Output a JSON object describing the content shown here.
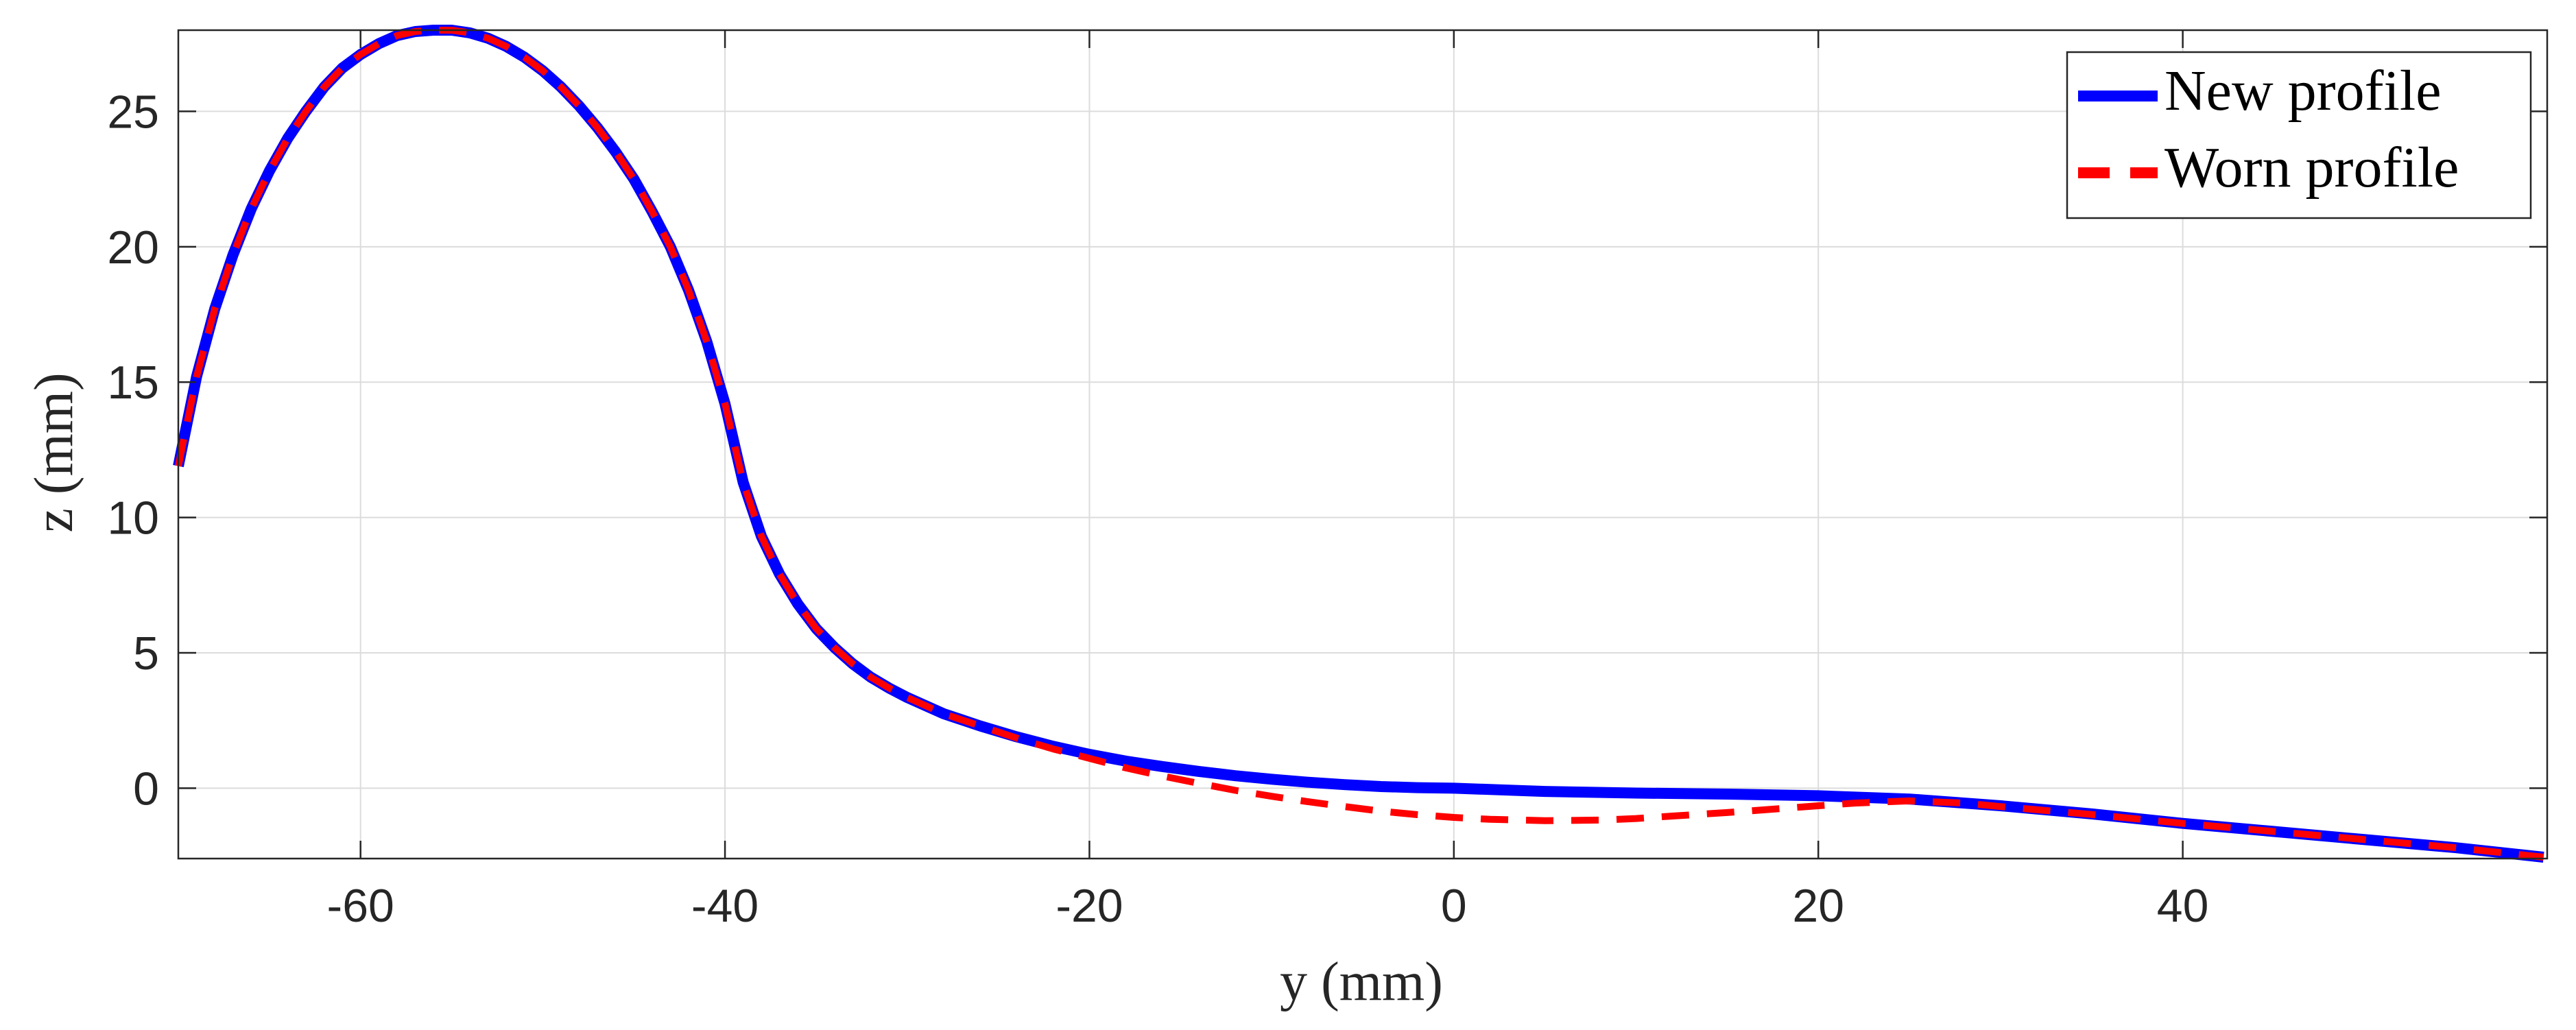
{
  "chart_data": {
    "type": "line",
    "xlabel": "y (mm)",
    "ylabel": "z (mm)",
    "xlim": [
      -70,
      60
    ],
    "ylim": [
      -2.6,
      28
    ],
    "xticks": [
      -60,
      -40,
      -20,
      0,
      20,
      40
    ],
    "xtick_labels": [
      "-60",
      "-40",
      "-20",
      "0",
      "20",
      "40"
    ],
    "yticks": [
      0,
      5,
      10,
      15,
      20,
      25
    ],
    "ytick_labels": [
      "0",
      "5",
      "10",
      "15",
      "20",
      "25"
    ],
    "grid": true,
    "legend_position": "top-right",
    "series": [
      {
        "name": "New profile",
        "color": "#0000ff",
        "style": "solid",
        "x": [
          -70,
          -69,
          -68,
          -67,
          -66,
          -65,
          -64,
          -63,
          -62,
          -61,
          -60,
          -59,
          -58,
          -57,
          -56,
          -55,
          -54,
          -53,
          -52,
          -51,
          -50,
          -49,
          -48,
          -47,
          -46,
          -45,
          -44,
          -43,
          -42,
          -41,
          -40,
          -39,
          -38,
          -37,
          -36,
          -35,
          -34,
          -33,
          -32,
          -31,
          -30,
          -28,
          -26,
          -24,
          -22,
          -20,
          -18,
          -16,
          -14,
          -12,
          -10,
          -8,
          -6,
          -4,
          -2,
          0,
          5,
          10,
          15,
          20,
          25,
          30,
          35,
          40,
          45,
          50,
          55,
          59.8
        ],
        "y": [
          11.9,
          15.2,
          17.7,
          19.7,
          21.4,
          22.8,
          24.0,
          25.0,
          25.9,
          26.6,
          27.1,
          27.5,
          27.8,
          27.95,
          28.0,
          28.0,
          27.9,
          27.7,
          27.4,
          27.0,
          26.5,
          25.9,
          25.2,
          24.4,
          23.5,
          22.5,
          21.3,
          20.0,
          18.4,
          16.5,
          14.2,
          11.3,
          9.3,
          7.9,
          6.8,
          5.9,
          5.2,
          4.6,
          4.1,
          3.7,
          3.35,
          2.75,
          2.3,
          1.9,
          1.55,
          1.25,
          1.0,
          0.8,
          0.62,
          0.46,
          0.33,
          0.22,
          0.13,
          0.06,
          0.02,
          0.0,
          -0.12,
          -0.18,
          -0.22,
          -0.28,
          -0.4,
          -0.65,
          -0.95,
          -1.3,
          -1.6,
          -1.9,
          -2.2,
          -2.55
        ]
      },
      {
        "name": "Worn profile",
        "color": "#ff0000",
        "style": "dashed",
        "x": [
          -70,
          -69,
          -68,
          -67,
          -66,
          -65,
          -64,
          -63,
          -62,
          -61,
          -60,
          -59,
          -58,
          -57,
          -56,
          -55,
          -54,
          -53,
          -52,
          -51,
          -50,
          -49,
          -48,
          -47,
          -46,
          -45,
          -44,
          -43,
          -42,
          -41,
          -40,
          -39,
          -38,
          -37,
          -36,
          -35,
          -34,
          -33,
          -32,
          -31,
          -30,
          -28,
          -26,
          -24,
          -22,
          -20,
          -18,
          -16,
          -14,
          -12,
          -10,
          -8,
          -6,
          -4,
          -2,
          0,
          2,
          5,
          8,
          10,
          12,
          15,
          18,
          20,
          22,
          25,
          28,
          30,
          35,
          40,
          45,
          50,
          55,
          59.8
        ],
        "y": [
          11.9,
          15.2,
          17.7,
          19.7,
          21.4,
          22.8,
          24.0,
          25.0,
          25.9,
          26.6,
          27.1,
          27.5,
          27.8,
          27.95,
          28.0,
          28.0,
          27.9,
          27.7,
          27.4,
          27.0,
          26.5,
          25.9,
          25.2,
          24.4,
          23.5,
          22.5,
          21.3,
          20.0,
          18.4,
          16.5,
          14.2,
          11.3,
          9.3,
          7.9,
          6.8,
          5.9,
          5.2,
          4.6,
          4.1,
          3.7,
          3.35,
          2.75,
          2.3,
          1.85,
          1.45,
          1.1,
          0.75,
          0.45,
          0.18,
          -0.08,
          -0.3,
          -0.5,
          -0.68,
          -0.85,
          -0.98,
          -1.08,
          -1.15,
          -1.2,
          -1.18,
          -1.12,
          -1.03,
          -0.9,
          -0.75,
          -0.65,
          -0.55,
          -0.47,
          -0.55,
          -0.68,
          -0.97,
          -1.3,
          -1.6,
          -1.9,
          -2.2,
          -2.55
        ]
      }
    ]
  }
}
